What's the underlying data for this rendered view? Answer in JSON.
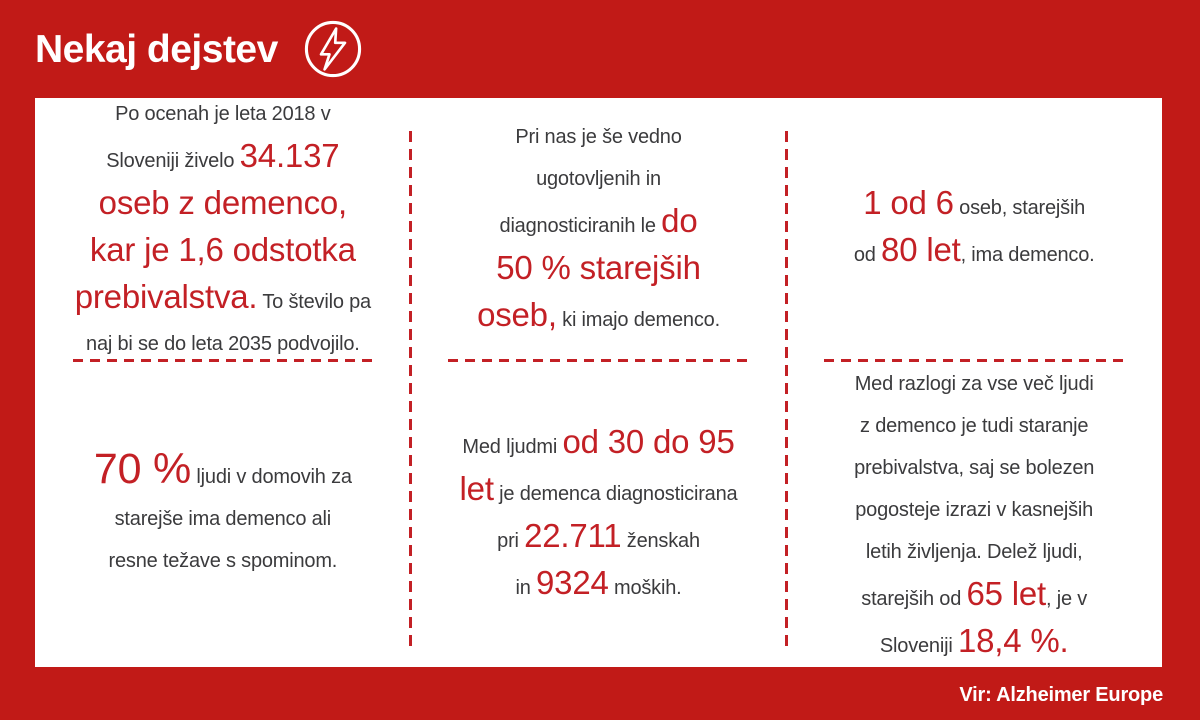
{
  "theme": {
    "background_red": "#c11a17",
    "accent_red": "#c32025",
    "text_dark": "#3b3b3d",
    "card_white": "#ffffff"
  },
  "header": {
    "title": "Nekaj dejstev",
    "icon": "lightning-bolt-icon"
  },
  "footer": {
    "source": "Vir: Alzheimer Europe"
  },
  "columns": [
    {
      "top": [
        {
          "t": "Po ocenah je leta 2018 v",
          "s": "n",
          "br": true
        },
        {
          "t": "Sloveniji živelo ",
          "s": "n"
        },
        {
          "t": "34.137",
          "s": "e",
          "br": true
        },
        {
          "t": "oseb z demenco,",
          "s": "e",
          "br": true
        },
        {
          "t": "kar je 1,6 odstotka",
          "s": "e",
          "br": true
        },
        {
          "t": "prebivalstva.",
          "s": "e"
        },
        {
          "t": " To število pa",
          "s": "n",
          "br": true
        },
        {
          "t": "naj bi se do leta 2035 podvojilo.",
          "s": "n"
        }
      ],
      "bottom": [
        {
          "t": "70 %",
          "s": "x"
        },
        {
          "t": " ljudi v domovih za",
          "s": "n",
          "br": true
        },
        {
          "t": "starejše ima demenco ali",
          "s": "n",
          "br": true
        },
        {
          "t": "resne težave s spominom.",
          "s": "n"
        }
      ]
    },
    {
      "top": [
        {
          "t": "Pri nas je še vedno",
          "s": "n",
          "br": true
        },
        {
          "t": "ugotovljenih in",
          "s": "n",
          "br": true
        },
        {
          "t": "diagnosticiranih le ",
          "s": "n"
        },
        {
          "t": "do",
          "s": "e",
          "br": true
        },
        {
          "t": "50 % starejših",
          "s": "e",
          "br": true
        },
        {
          "t": "oseb,",
          "s": "e"
        },
        {
          "t": " ki imajo demenco.",
          "s": "n"
        }
      ],
      "bottom": [
        {
          "t": "Med ljudmi ",
          "s": "n"
        },
        {
          "t": "od 30 do 95",
          "s": "e",
          "br": true
        },
        {
          "t": "let",
          "s": "e"
        },
        {
          "t": " je demenca diagnosticirana",
          "s": "n",
          "br": true
        },
        {
          "t": "pri ",
          "s": "n"
        },
        {
          "t": "22.711",
          "s": "e"
        },
        {
          "t": " ženskah",
          "s": "n",
          "br": true
        },
        {
          "t": "in ",
          "s": "n"
        },
        {
          "t": "9324",
          "s": "e"
        },
        {
          "t": " moških.",
          "s": "n"
        }
      ]
    },
    {
      "top": [
        {
          "t": "1 od 6",
          "s": "e"
        },
        {
          "t": " oseb, starejših",
          "s": "n",
          "br": true
        },
        {
          "t": "od ",
          "s": "n"
        },
        {
          "t": "80 let",
          "s": "e"
        },
        {
          "t": ", ima demenco.",
          "s": "n"
        }
      ],
      "bottom": [
        {
          "t": "Med razlogi za vse več ljudi",
          "s": "n",
          "br": true
        },
        {
          "t": "z demenco je tudi staranje",
          "s": "n",
          "br": true
        },
        {
          "t": "prebivalstva, saj se bolezen",
          "s": "n",
          "br": true
        },
        {
          "t": "pogosteje izrazi v kasnejših",
          "s": "n",
          "br": true
        },
        {
          "t": "letih življenja. Delež ljudi,",
          "s": "n",
          "br": true
        },
        {
          "t": "starejših od ",
          "s": "n"
        },
        {
          "t": "65 let",
          "s": "e"
        },
        {
          "t": ", je v",
          "s": "n",
          "br": true
        },
        {
          "t": "Sloveniji ",
          "s": "n"
        },
        {
          "t": "18,4 %.",
          "s": "e"
        }
      ]
    }
  ]
}
